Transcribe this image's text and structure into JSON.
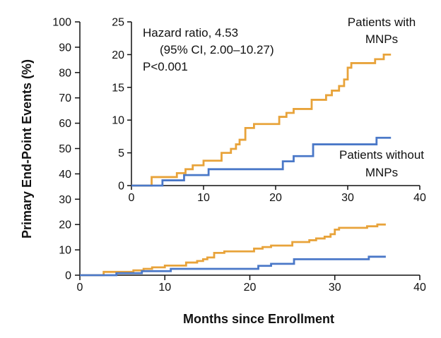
{
  "colors": {
    "with_mnps": "#E8A33A",
    "without_mnps": "#4A78C8",
    "axis": "#111111"
  },
  "chart_data": [
    {
      "type": "line",
      "step": true,
      "panel": "main",
      "xlabel": "Months since Enrollment",
      "ylabel": "Primary End-Point Events (%)",
      "xlim": [
        0,
        40
      ],
      "ylim": [
        0,
        100
      ],
      "xticks": [
        "0",
        "10",
        "20",
        "30",
        "40"
      ],
      "yticks": [
        "0",
        "10",
        "20",
        "30",
        "40",
        "50",
        "60",
        "70",
        "80",
        "90",
        "100"
      ],
      "grid": false,
      "series": [
        {
          "name": "Patients with MNPs",
          "color_key": "with_mnps",
          "x": [
            0,
            2.8,
            6.3,
            7.5,
            8.5,
            10,
            12.5,
            13.8,
            14.5,
            15,
            15.8,
            17,
            18.5,
            20.5,
            21.5,
            22.5,
            25,
            27,
            27.8,
            28.8,
            29.5,
            30,
            30.5,
            33.8,
            35,
            36
          ],
          "y": [
            0,
            1.3,
            1.9,
            2.5,
            3.1,
            3.8,
            5.0,
            5.6,
            6.3,
            7.0,
            8.8,
            9.4,
            9.4,
            10.5,
            11.1,
            11.7,
            13.1,
            13.8,
            14.5,
            15.2,
            16.2,
            18.0,
            18.7,
            19.3,
            20.0,
            20.0
          ]
        },
        {
          "name": "Patients without MNPs",
          "color_key": "without_mnps",
          "x": [
            0,
            4.3,
            7.3,
            10.7,
            18.5,
            21,
            22.5,
            25.2,
            34,
            36
          ],
          "y": [
            0,
            0.8,
            1.6,
            2.5,
            2.5,
            3.7,
            4.5,
            6.3,
            7.3,
            7.3
          ]
        }
      ]
    },
    {
      "type": "line",
      "step": true,
      "panel": "inset",
      "xlim": [
        0,
        40
      ],
      "ylim": [
        0,
        25
      ],
      "xticks": [
        "0",
        "10",
        "20",
        "30",
        "40"
      ],
      "yticks": [
        "0",
        "5",
        "10",
        "15",
        "20",
        "25"
      ],
      "annotation": {
        "hr_line1": "Hazard ratio, 4.53",
        "hr_line2": "(95% CI, 2.00–10.27)",
        "hr_line3": "P<0.001",
        "label_with_line1": "Patients with",
        "label_with_line2": "MNPs",
        "label_without_line1": "Patients without",
        "label_without_line2": "MNPs"
      }
    }
  ]
}
